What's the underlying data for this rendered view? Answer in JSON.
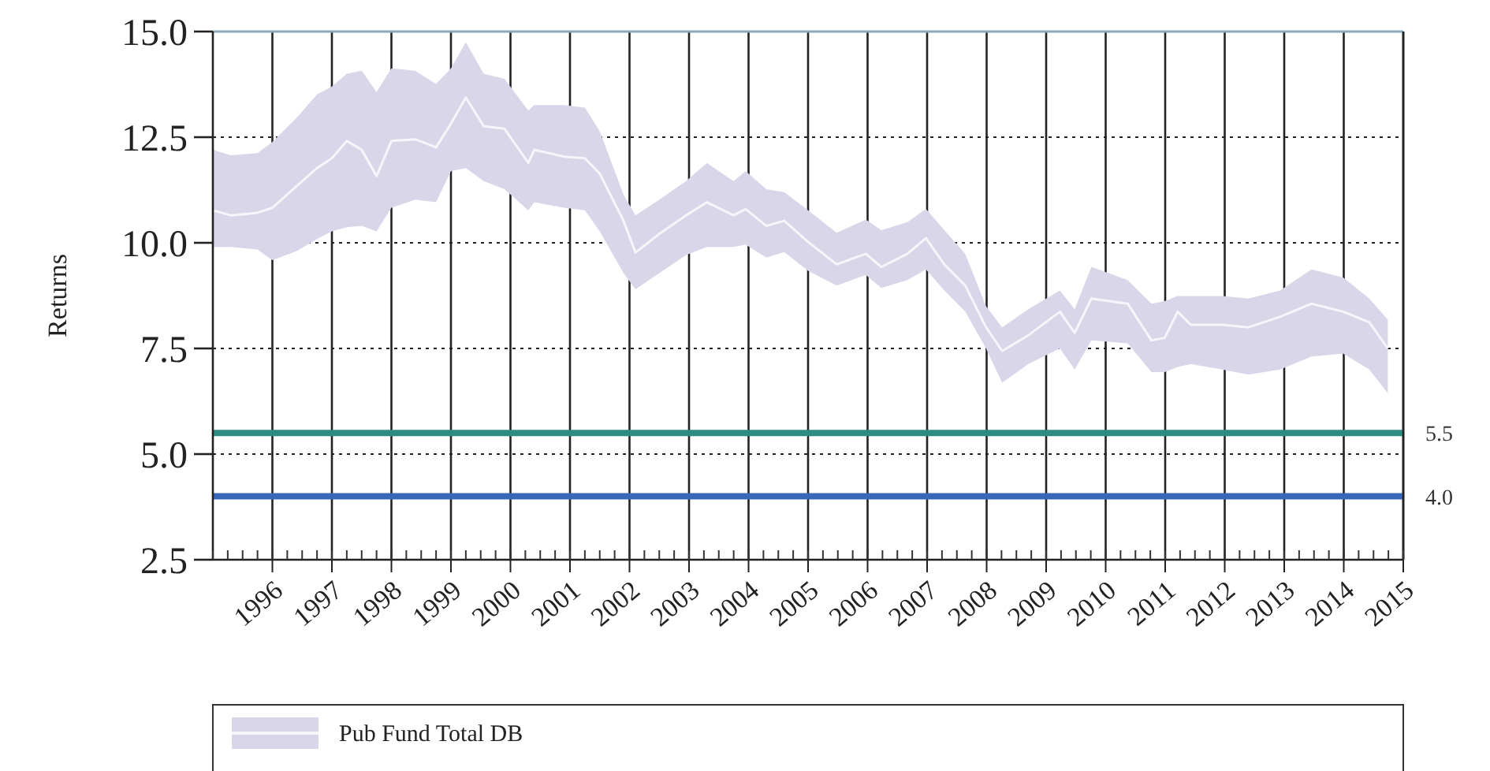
{
  "chart_data": {
    "type": "line",
    "ylabel": "Returns",
    "xlim": [
      1995,
      2015
    ],
    "xticks": [
      1996,
      1997,
      1998,
      1999,
      2000,
      2001,
      2002,
      2003,
      2004,
      2005,
      2006,
      2007,
      2008,
      2009,
      2010,
      2011,
      2012,
      2013,
      2014,
      2015
    ],
    "ylim": [
      2.5,
      15
    ],
    "yticks": [
      2.5,
      {
        "value": 5,
        "label": "5.0"
      },
      7.5,
      {
        "value": 10,
        "label": "10.0"
      },
      12.5,
      {
        "value": 15,
        "label": "15.0"
      }
    ],
    "grid": true,
    "legend": "bottom",
    "x": [
      1995,
      1995.3,
      1995.75,
      1996,
      1996.4,
      1996.75,
      1997,
      1997.25,
      1997.5,
      1997.75,
      1998,
      1998.4,
      1998.75,
      1999,
      1999.25,
      1999.55,
      1999.9,
      2000.3,
      2000.4,
      2000.9,
      2001.25,
      2001.5,
      2001.9,
      2002.1,
      2002.5,
      2002.95,
      2003.3,
      2003.75,
      2003.95,
      2004.3,
      2004.6,
      2005,
      2005.48,
      2005.97,
      2006.23,
      2006.67,
      2006.98,
      2007.29,
      2007.64,
      2007.99,
      2008.26,
      2008.7,
      2009.23,
      2009.48,
      2009.76,
      2010.37,
      2010.77,
      2010.99,
      2011.21,
      2011.43,
      2011.96,
      2012.4,
      2012.93,
      2013.46,
      2013.99,
      2014.43,
      2014.74
    ],
    "series": [
      {
        "name": "Pub Fund Total DB",
        "color": "#f6f5fa",
        "values": [
          10.77,
          10.65,
          10.71,
          10.83,
          11.33,
          11.77,
          12.0,
          12.41,
          12.2,
          11.58,
          12.41,
          12.45,
          12.26,
          12.82,
          13.44,
          12.76,
          12.7,
          11.89,
          12.2,
          12.04,
          12.0,
          11.64,
          10.52,
          9.77,
          10.21,
          10.65,
          10.96,
          10.65,
          10.8,
          10.4,
          10.52,
          10.02,
          9.49,
          9.74,
          9.43,
          9.74,
          10.11,
          9.49,
          8.99,
          8.0,
          7.44,
          7.81,
          8.37,
          7.87,
          8.68,
          8.56,
          7.69,
          7.75,
          8.37,
          8.06,
          8.06,
          8.0,
          8.25,
          8.56,
          8.37,
          8.12,
          7.5
        ],
        "upper": [
          12.2,
          12.07,
          12.12,
          12.39,
          12.95,
          13.51,
          13.7,
          14.0,
          14.07,
          13.57,
          14.13,
          14.07,
          13.76,
          14.13,
          14.75,
          14.0,
          13.88,
          13.13,
          13.26,
          13.26,
          13.2,
          12.64,
          11.14,
          10.65,
          11.02,
          11.46,
          11.89,
          11.46,
          11.7,
          11.27,
          11.2,
          10.77,
          10.24,
          10.55,
          10.3,
          10.49,
          10.8,
          10.3,
          9.74,
          8.5,
          8.0,
          8.43,
          8.87,
          8.43,
          9.43,
          9.12,
          8.56,
          8.62,
          8.74,
          8.74,
          8.74,
          8.68,
          8.87,
          9.37,
          9.18,
          8.68,
          8.18
        ],
        "lower": [
          9.9,
          9.9,
          9.84,
          9.59,
          9.8,
          10.09,
          10.27,
          10.37,
          10.4,
          10.27,
          10.83,
          11.02,
          10.96,
          11.7,
          11.77,
          11.46,
          11.27,
          10.77,
          10.96,
          10.83,
          10.77,
          10.27,
          9.28,
          8.9,
          9.28,
          9.71,
          9.9,
          9.9,
          9.96,
          9.65,
          9.78,
          9.34,
          8.99,
          9.24,
          8.93,
          9.12,
          9.37,
          8.87,
          8.37,
          7.5,
          6.69,
          7.13,
          7.5,
          7.0,
          7.69,
          7.62,
          6.94,
          6.94,
          7.06,
          7.13,
          7.0,
          6.88,
          7.0,
          7.31,
          7.38,
          7.0,
          6.44
        ]
      }
    ],
    "ref_lines": [
      {
        "axis": "y",
        "value": 5.5,
        "label": "5.5",
        "color": "#2e8b80"
      },
      {
        "axis": "y",
        "value": 4.0,
        "label": "4.0",
        "color": "#3a66b8"
      }
    ]
  }
}
